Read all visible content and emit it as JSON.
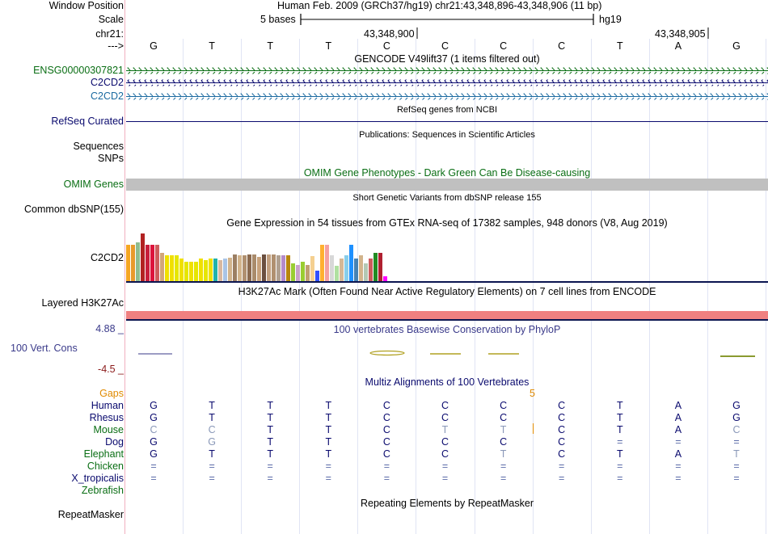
{
  "header": {
    "window_position_label": "Window Position",
    "window_position_text": "Human Feb. 2009 (GRCh37/hg19)   chr21:43,348,896-43,348,906 (11 bp)",
    "scale_label": "Scale",
    "scale_text": "5 bases",
    "scale_assembly": "hg19",
    "chrom_label": "chr21:",
    "coord_left": "43,348,900",
    "coord_right": "43,348,905",
    "strand_label": "--->",
    "sequence": [
      "G",
      "T",
      "T",
      "T",
      "C",
      "C",
      "C",
      "C",
      "T",
      "A",
      "G"
    ]
  },
  "tracks": {
    "gencode": {
      "title": "GENCODE V49lift37 (1 items filtered out)",
      "rows": [
        {
          "label": "ENSG00000307821",
          "color": "#0a6e14"
        },
        {
          "label": "C2CD2",
          "color": "#0a0a6e"
        },
        {
          "label": "C2CD2",
          "color": "#1b6aa0"
        }
      ]
    },
    "refseq": {
      "title": "RefSeq genes from NCBI",
      "label": "RefSeq Curated",
      "color": "#0a0a6e"
    },
    "publications": {
      "title": "Publications: Sequences in Scientific Articles",
      "label1": "Sequences",
      "label2": "SNPs"
    },
    "omim": {
      "title": "OMIM Gene Phenotypes - Dark Green Can Be Disease-causing",
      "label": "OMIM Genes",
      "color": "#0a6e14",
      "bar_color": "#c0c0c0"
    },
    "dbsnp": {
      "title": "Short Genetic Variants from dbSNP release 155",
      "label": "Common dbSNP(155)"
    },
    "gtex": {
      "title": "Gene Expression in 54 tissues from GTEx RNA-seq of 17382 samples, 948 donors (V8, Aug 2019)",
      "label": "C2CD2"
    },
    "h3k27ac": {
      "title": "H3K27Ac Mark (Often Found Near Active Regulatory Elements) on 7 cell lines from ENCODE",
      "label": "Layered H3K27Ac",
      "bar_color": "#f08080"
    },
    "conservation": {
      "title": "100 vertebrates Basewise Conservation by PhyloP",
      "label": "100 Vert. Cons",
      "max_label": "4.88 _",
      "min_label": "-4.5 _"
    },
    "multiz": {
      "title": "Multiz Alignments of 100 Vertebrates",
      "gaps_label": "Gaps",
      "gap_count": "5",
      "species": [
        {
          "name": "Human",
          "bases": [
            "G",
            "T",
            "T",
            "T",
            "C",
            "C",
            "C",
            "C",
            "T",
            "A",
            "G"
          ]
        },
        {
          "name": "Rhesus",
          "bases": [
            "G",
            "T",
            "T",
            "T",
            "C",
            "C",
            "C",
            "C",
            "T",
            "A",
            "G"
          ]
        },
        {
          "name": "Mouse",
          "bases": [
            "C",
            "C",
            "T",
            "T",
            "C",
            "T",
            "T",
            "C",
            "T",
            "A",
            "C"
          ]
        },
        {
          "name": "Dog",
          "bases": [
            "G",
            "G",
            "T",
            "T",
            "C",
            "C",
            "C",
            "C",
            "=",
            "=",
            "="
          ]
        },
        {
          "name": "Elephant",
          "bases": [
            "G",
            "T",
            "T",
            "T",
            "C",
            "C",
            "T",
            "C",
            "T",
            "A",
            "T"
          ]
        },
        {
          "name": "Chicken",
          "bases": [
            "=",
            "=",
            "=",
            "=",
            "=",
            "=",
            "=",
            "=",
            "=",
            "=",
            "="
          ]
        },
        {
          "name": "X_tropicalis",
          "bases": [
            "=",
            "=",
            "=",
            "=",
            "=",
            "=",
            "=",
            "=",
            "=",
            "=",
            "="
          ]
        },
        {
          "name": "Zebrafish",
          "bases": [
            "",
            "",
            "",
            "",
            "",
            "",
            "",
            "",
            "",
            "",
            ""
          ]
        }
      ]
    },
    "repeatmasker": {
      "title": "Repeating Elements by RepeatMasker",
      "label": "RepeatMasker"
    }
  },
  "chart_data": {
    "type": "bar",
    "title": "Gene Expression in 54 tissues from GTEx RNA-seq of 17382 samples, 948 donors (V8, Aug 2019)",
    "series_name": "C2CD2",
    "values": [
      48,
      48,
      52,
      64,
      48,
      48,
      48,
      38,
      34,
      34,
      34,
      30,
      26,
      26,
      26,
      30,
      28,
      30,
      30,
      28,
      30,
      31,
      36,
      34,
      34,
      36,
      36,
      32,
      36,
      36,
      36,
      34,
      34,
      34,
      24,
      22,
      26,
      22,
      33,
      14,
      48,
      48,
      34,
      20,
      30,
      34,
      48,
      30,
      34,
      24,
      30,
      38,
      38,
      6
    ],
    "colors": [
      "#f5a623",
      "#e89a2c",
      "#8fbc8f",
      "#b22222",
      "#c81e3c",
      "#dc143c",
      "#cd5c5c",
      "#d2a679",
      "#f0e000",
      "#f0e000",
      "#e6e600",
      "#f0e000",
      "#e6e600",
      "#f0e000",
      "#e6e600",
      "#f0e000",
      "#e6e600",
      "#f0e000",
      "#20b2aa",
      "#d8b8a0",
      "#a9c4e6",
      "#d2b48c",
      "#9c7f63",
      "#d2b48c",
      "#b09070",
      "#8b6a4f",
      "#a98b6b",
      "#c8a27c",
      "#6b4f3f",
      "#c2a080",
      "#b09070",
      "#b0a090",
      "#b48ac8",
      "#b8860b",
      "#9acd32",
      "#c8a2c8",
      "#9acd32",
      "#c0a070",
      "#f5d090",
      "#3050ff",
      "#ffb030",
      "#f5a0a0",
      "#d8d8d8",
      "#b0e0a0",
      "#d4b896",
      "#87ceeb",
      "#1e90ff",
      "#4682b4",
      "#d2b48c",
      "#b4c8b4",
      "#cd5c5c",
      "#228b22",
      "#b02030",
      "#ff00ff"
    ],
    "ylim": [
      0,
      70
    ]
  }
}
